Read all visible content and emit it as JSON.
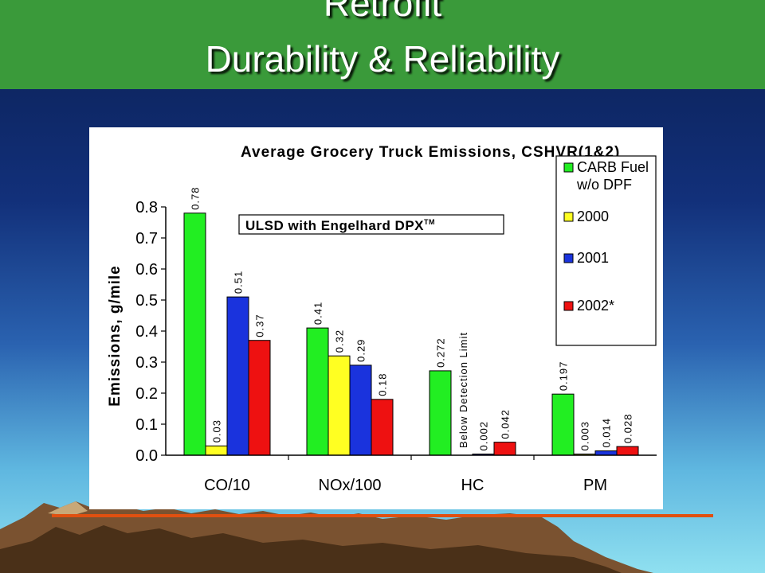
{
  "slide": {
    "title_line1": "Retrofit",
    "title_line2": "Durability & Reliability"
  },
  "colors": {
    "title_band": "#3a9a3a",
    "series": [
      "#22ee22",
      "#ffff22",
      "#1a33dd",
      "#ee1111"
    ],
    "underline": "#e05010"
  },
  "chart_data": {
    "type": "bar",
    "title": "Average Grocery Truck Emissions, CSHVR(1&2)",
    "ylabel": "Emissions, g/mile",
    "xlabel": "",
    "ylim": [
      0,
      0.8
    ],
    "yticks": [
      "0.0",
      "0.1",
      "0.2",
      "0.3",
      "0.4",
      "0.5",
      "0.6",
      "0.7",
      "0.8"
    ],
    "grid": false,
    "legend_position": "top-right",
    "categories": [
      "CO/10",
      "NOx/100",
      "HC",
      "PM"
    ],
    "series": [
      {
        "name": "CARB Fuel w/o DPF",
        "values": [
          0.78,
          0.41,
          0.272,
          0.197
        ],
        "labels": [
          "0.78",
          "0.41",
          "0.272",
          "0.197"
        ]
      },
      {
        "name": "2000",
        "values": [
          0.03,
          0.32,
          null,
          0.003
        ],
        "labels": [
          "0.03",
          "0.32",
          "",
          "0.003"
        ]
      },
      {
        "name": "2001",
        "values": [
          0.51,
          0.29,
          0.002,
          0.014
        ],
        "labels": [
          "0.51",
          "0.29",
          "0.002",
          "0.014"
        ]
      },
      {
        "name": "2002*",
        "values": [
          0.37,
          0.18,
          0.042,
          0.028
        ],
        "labels": [
          "0.37",
          "0.18",
          "0.042",
          "0.028"
        ]
      }
    ],
    "legend_lines": [
      [
        "CARB Fuel",
        "w/o DPF"
      ],
      [
        "2000"
      ],
      [
        "2001"
      ],
      [
        "2002*"
      ]
    ],
    "annotations": {
      "box_text": "ULSD with Engelhard DPX",
      "box_superscript": "TM",
      "below_detection": "Below Detection Limit"
    }
  }
}
